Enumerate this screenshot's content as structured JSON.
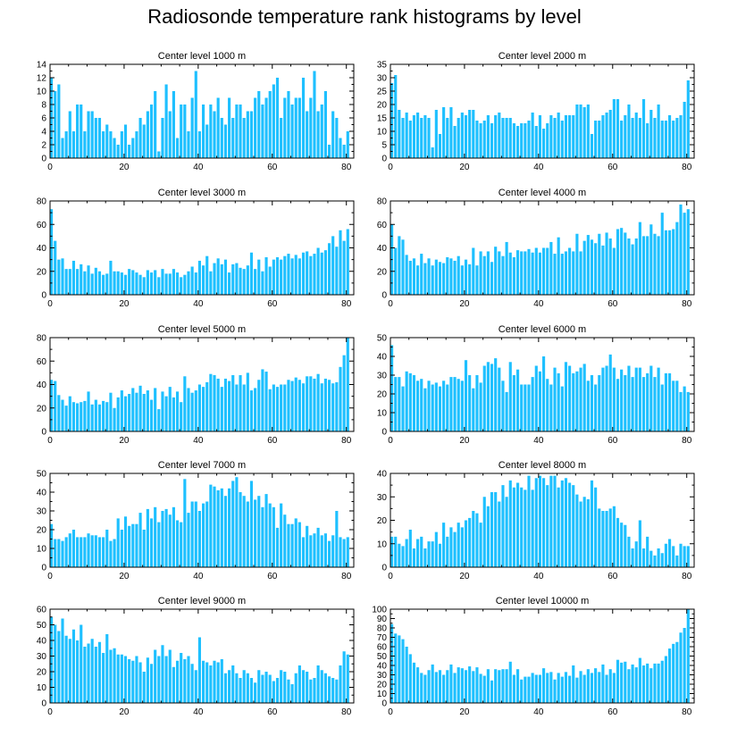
{
  "title": "Radiosonde temperature rank histograms by level",
  "colors": {
    "bar": "#1EC0FF",
    "axis": "#000000"
  },
  "chart_data": [
    {
      "type": "bar",
      "title": "Center level 1000 m",
      "xlim": [
        0,
        82
      ],
      "ylim": [
        0,
        14
      ],
      "xticks": [
        0,
        20,
        40,
        60,
        80
      ],
      "yticks": [
        0,
        2,
        4,
        6,
        8,
        10,
        12,
        14
      ],
      "values": [
        12,
        10,
        11,
        3,
        4,
        7,
        4,
        8,
        8,
        4,
        7,
        7,
        6,
        6,
        4,
        5,
        4,
        3,
        2,
        4,
        5,
        2,
        3,
        4,
        6,
        5,
        7,
        8,
        10,
        1,
        6,
        11,
        7,
        10,
        3,
        8,
        8,
        4,
        9,
        13,
        4,
        8,
        5,
        8,
        7,
        9,
        6,
        5,
        9,
        6,
        8,
        8,
        6,
        7,
        7,
        9,
        10,
        8,
        9,
        10,
        11,
        12,
        6,
        9,
        10,
        8,
        9,
        9,
        12,
        7,
        9,
        13,
        7,
        8,
        10,
        2,
        7,
        6,
        3,
        2,
        4
      ],
      "xlabel": "",
      "ylabel": ""
    },
    {
      "type": "bar",
      "title": "Center level 2000 m",
      "xlim": [
        0,
        82
      ],
      "ylim": [
        0,
        35
      ],
      "xticks": [
        0,
        20,
        40,
        60,
        80
      ],
      "yticks": [
        0,
        5,
        10,
        15,
        20,
        25,
        30,
        35
      ],
      "values": [
        28,
        31,
        18,
        15,
        17,
        14,
        16,
        17,
        15,
        16,
        15,
        4,
        18,
        9,
        19,
        15,
        19,
        12,
        15,
        17,
        16,
        18,
        18,
        14,
        13,
        14,
        16,
        13,
        16,
        17,
        15,
        15,
        15,
        13,
        12,
        13,
        13,
        14,
        17,
        12,
        16,
        11,
        13,
        16,
        15,
        17,
        14,
        16,
        16,
        16,
        20,
        20,
        19,
        20,
        9,
        14,
        14,
        16,
        17,
        18,
        22,
        22,
        14,
        16,
        20,
        15,
        17,
        15,
        22,
        13,
        18,
        15,
        20,
        14,
        14,
        16,
        14,
        15,
        16,
        21,
        29
      ],
      "xlabel": "",
      "ylabel": ""
    },
    {
      "type": "bar",
      "title": "Center level 3000 m",
      "xlim": [
        0,
        82
      ],
      "ylim": [
        0,
        80
      ],
      "xticks": [
        0,
        20,
        40,
        60,
        80
      ],
      "yticks": [
        0,
        20,
        40,
        60,
        80
      ],
      "values": [
        73,
        46,
        30,
        31,
        22,
        22,
        29,
        22,
        26,
        20,
        25,
        18,
        23,
        20,
        17,
        18,
        29,
        20,
        20,
        19,
        17,
        22,
        21,
        19,
        17,
        15,
        21,
        19,
        21,
        15,
        22,
        18,
        18,
        22,
        19,
        15,
        17,
        20,
        24,
        19,
        29,
        25,
        33,
        20,
        27,
        31,
        26,
        30,
        19,
        26,
        27,
        23,
        22,
        25,
        36,
        22,
        30,
        20,
        32,
        24,
        30,
        32,
        30,
        33,
        35,
        31,
        34,
        31,
        36,
        37,
        33,
        35,
        40,
        36,
        38,
        44,
        50,
        41,
        55,
        46,
        56
      ],
      "xlabel": "",
      "ylabel": ""
    },
    {
      "type": "bar",
      "title": "Center level 4000 m",
      "xlim": [
        0,
        82
      ],
      "ylim": [
        0,
        80
      ],
      "xticks": [
        0,
        20,
        40,
        60,
        80
      ],
      "yticks": [
        0,
        20,
        40,
        60,
        80
      ],
      "values": [
        60,
        40,
        50,
        47,
        34,
        29,
        31,
        25,
        35,
        27,
        31,
        25,
        30,
        28,
        27,
        32,
        31,
        29,
        33,
        25,
        30,
        26,
        40,
        25,
        37,
        33,
        37,
        28,
        41,
        37,
        33,
        45,
        36,
        32,
        38,
        37,
        37,
        39,
        36,
        40,
        36,
        40,
        40,
        45,
        35,
        49,
        35,
        37,
        40,
        37,
        52,
        37,
        46,
        51,
        47,
        44,
        52,
        42,
        53,
        48,
        40,
        56,
        57,
        53,
        48,
        43,
        48,
        62,
        50,
        50,
        60,
        52,
        50,
        70,
        55,
        55,
        56,
        62,
        77,
        70,
        73
      ],
      "xlabel": "",
      "ylabel": ""
    },
    {
      "type": "bar",
      "title": "Center level 5000 m",
      "xlim": [
        0,
        82
      ],
      "ylim": [
        0,
        80
      ],
      "xticks": [
        0,
        20,
        40,
        60,
        80
      ],
      "yticks": [
        0,
        20,
        40,
        60,
        80
      ],
      "values": [
        44,
        43,
        31,
        27,
        22,
        30,
        25,
        24,
        25,
        26,
        34,
        23,
        27,
        23,
        26,
        25,
        33,
        20,
        29,
        35,
        30,
        32,
        37,
        33,
        39,
        32,
        35,
        27,
        37,
        19,
        34,
        30,
        38,
        29,
        34,
        25,
        47,
        37,
        33,
        35,
        40,
        38,
        42,
        49,
        48,
        45,
        38,
        45,
        43,
        48,
        40,
        48,
        40,
        50,
        35,
        37,
        44,
        53,
        51,
        36,
        40,
        38,
        40,
        40,
        44,
        43,
        46,
        44,
        41,
        47,
        47,
        45,
        49,
        41,
        45,
        44,
        41,
        42,
        55,
        65,
        80
      ],
      "xlabel": "",
      "ylabel": ""
    },
    {
      "type": "bar",
      "title": "Center level 6000 m",
      "xlim": [
        0,
        82
      ],
      "ylim": [
        0,
        50
      ],
      "xticks": [
        0,
        20,
        40,
        60,
        80
      ],
      "yticks": [
        0,
        10,
        20,
        30,
        40,
        50
      ],
      "values": [
        46,
        29,
        29,
        24,
        32,
        31,
        30,
        27,
        28,
        23,
        27,
        25,
        26,
        24,
        27,
        25,
        29,
        29,
        28,
        27,
        38,
        30,
        23,
        30,
        26,
        35,
        37,
        36,
        39,
        34,
        27,
        21,
        37,
        30,
        33,
        25,
        25,
        25,
        29,
        35,
        32,
        40,
        28,
        25,
        34,
        31,
        24,
        37,
        35,
        31,
        32,
        34,
        36,
        27,
        30,
        25,
        30,
        34,
        35,
        41,
        34,
        28,
        33,
        30,
        35,
        29,
        34,
        34,
        29,
        31,
        35,
        29,
        34,
        25,
        31,
        31,
        27,
        27,
        21,
        24,
        21
      ],
      "xlabel": "",
      "ylabel": ""
    },
    {
      "type": "bar",
      "title": "Center level 7000 m",
      "xlim": [
        0,
        82
      ],
      "ylim": [
        0,
        50
      ],
      "xticks": [
        0,
        20,
        40,
        60,
        80
      ],
      "yticks": [
        0,
        10,
        20,
        30,
        40,
        50
      ],
      "values": [
        23,
        15,
        15,
        14,
        16,
        18,
        20,
        16,
        16,
        16,
        18,
        17,
        17,
        16,
        16,
        20,
        14,
        15,
        26,
        20,
        27,
        22,
        23,
        23,
        29,
        20,
        31,
        26,
        32,
        24,
        30,
        31,
        28,
        32,
        25,
        24,
        47,
        29,
        35,
        35,
        30,
        34,
        35,
        44,
        43,
        41,
        42,
        38,
        42,
        46,
        48,
        40,
        38,
        35,
        46,
        36,
        38,
        32,
        39,
        34,
        32,
        21,
        34,
        28,
        23,
        23,
        26,
        24,
        16,
        22,
        17,
        18,
        21,
        17,
        18,
        14,
        17,
        30,
        16,
        15,
        16
      ],
      "xlabel": "",
      "ylabel": ""
    },
    {
      "type": "bar",
      "title": "Center level 8000 m",
      "xlim": [
        0,
        82
      ],
      "ylim": [
        0,
        40
      ],
      "xticks": [
        0,
        20,
        40,
        60,
        80
      ],
      "yticks": [
        0,
        10,
        20,
        30,
        40
      ],
      "values": [
        13,
        13,
        10,
        9,
        12,
        16,
        8,
        12,
        13,
        8,
        11,
        11,
        15,
        10,
        19,
        13,
        17,
        15,
        19,
        17,
        20,
        21,
        24,
        23,
        19,
        30,
        26,
        32,
        32,
        28,
        35,
        30,
        37,
        34,
        36,
        34,
        33,
        39,
        33,
        38,
        39,
        38,
        35,
        39,
        39,
        34,
        37,
        38,
        36,
        35,
        31,
        28,
        30,
        29,
        37,
        34,
        25,
        24,
        24,
        25,
        26,
        21,
        19,
        18,
        13,
        8,
        11,
        20,
        8,
        13,
        7,
        5,
        8,
        6,
        10,
        12,
        9,
        5,
        10,
        9,
        9
      ],
      "xlabel": "",
      "ylabel": ""
    },
    {
      "type": "bar",
      "title": "Center level 9000 m",
      "xlim": [
        0,
        82
      ],
      "ylim": [
        0,
        60
      ],
      "xticks": [
        0,
        20,
        40,
        60,
        80
      ],
      "yticks": [
        0,
        10,
        20,
        30,
        40,
        50,
        60
      ],
      "values": [
        55,
        50,
        46,
        54,
        43,
        41,
        47,
        40,
        50,
        36,
        38,
        41,
        36,
        39,
        32,
        44,
        34,
        35,
        31,
        31,
        30,
        28,
        27,
        30,
        26,
        20,
        29,
        25,
        34,
        30,
        37,
        30,
        34,
        23,
        27,
        32,
        28,
        30,
        25,
        21,
        42,
        27,
        26,
        24,
        27,
        26,
        28,
        19,
        21,
        24,
        19,
        16,
        21,
        19,
        16,
        13,
        21,
        18,
        20,
        18,
        14,
        16,
        21,
        20,
        15,
        12,
        19,
        24,
        21,
        20,
        15,
        16,
        24,
        21,
        19,
        17,
        16,
        15,
        24,
        33,
        31
      ],
      "xlabel": "",
      "ylabel": ""
    },
    {
      "type": "bar",
      "title": "Center level 10000 m",
      "xlim": [
        0,
        82
      ],
      "ylim": [
        0,
        100
      ],
      "xticks": [
        0,
        20,
        40,
        60,
        80
      ],
      "yticks": [
        0,
        10,
        20,
        30,
        40,
        50,
        60,
        70,
        80,
        90,
        100
      ],
      "values": [
        84,
        74,
        72,
        68,
        60,
        52,
        43,
        38,
        32,
        30,
        35,
        41,
        33,
        35,
        30,
        35,
        41,
        32,
        38,
        37,
        35,
        39,
        34,
        38,
        31,
        29,
        36,
        24,
        36,
        35,
        36,
        36,
        44,
        30,
        36,
        25,
        28,
        28,
        32,
        30,
        30,
        37,
        32,
        33,
        25,
        32,
        28,
        33,
        29,
        40,
        27,
        34,
        30,
        36,
        32,
        37,
        33,
        41,
        30,
        36,
        32,
        46,
        43,
        44,
        36,
        41,
        38,
        48,
        40,
        42,
        37,
        42,
        42,
        45,
        50,
        58,
        63,
        65,
        75,
        80,
        100
      ],
      "xlabel": "",
      "ylabel": ""
    }
  ]
}
